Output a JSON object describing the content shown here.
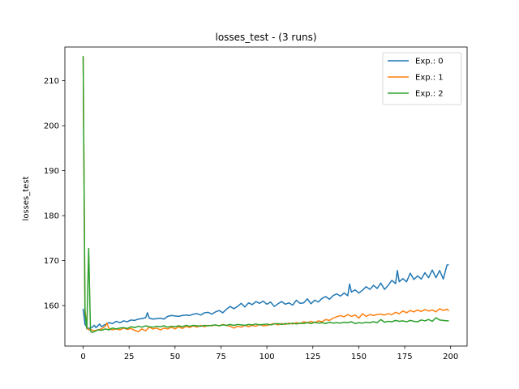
{
  "chart_data": {
    "type": "line",
    "title": "losses_test - (3 runs)",
    "xlabel": "",
    "ylabel": "losses_test",
    "xlim": [
      -9.95,
      208.95
    ],
    "ylim": [
      151.0,
      217.5
    ],
    "xticks": [
      0,
      25,
      50,
      75,
      100,
      125,
      150,
      175,
      200
    ],
    "yticks": [
      160,
      170,
      180,
      190,
      200,
      210
    ],
    "grid": false,
    "legend_position": "top-right",
    "series": [
      {
        "name": "Exp.: 0",
        "color": "#1f77b4",
        "points": [
          [
            0,
            159.3
          ],
          [
            1,
            155.8
          ],
          [
            2,
            155.2
          ],
          [
            3,
            154.9
          ],
          [
            4,
            155.0
          ],
          [
            5,
            155.2
          ],
          [
            6,
            155.6
          ],
          [
            7,
            155.1
          ],
          [
            8,
            155.5
          ],
          [
            9,
            155.9
          ],
          [
            10,
            155.3
          ],
          [
            12,
            155.8
          ],
          [
            14,
            156.2
          ],
          [
            16,
            156.0
          ],
          [
            18,
            156.5
          ],
          [
            20,
            156.2
          ],
          [
            22,
            156.6
          ],
          [
            24,
            156.4
          ],
          [
            26,
            156.8
          ],
          [
            28,
            156.7
          ],
          [
            30,
            157.0
          ],
          [
            32,
            157.1
          ],
          [
            34,
            157.3
          ],
          [
            35,
            158.4
          ],
          [
            36,
            157.2
          ],
          [
            38,
            157.0
          ],
          [
            40,
            157.1
          ],
          [
            42,
            157.2
          ],
          [
            44,
            157.0
          ],
          [
            46,
            157.6
          ],
          [
            48,
            157.8
          ],
          [
            50,
            157.7
          ],
          [
            52,
            157.6
          ],
          [
            54,
            157.8
          ],
          [
            56,
            157.9
          ],
          [
            58,
            157.8
          ],
          [
            60,
            158.1
          ],
          [
            62,
            158.2
          ],
          [
            64,
            157.9
          ],
          [
            66,
            158.4
          ],
          [
            68,
            158.5
          ],
          [
            70,
            158.1
          ],
          [
            72,
            158.6
          ],
          [
            74,
            158.9
          ],
          [
            76,
            158.4
          ],
          [
            78,
            159.2
          ],
          [
            80,
            159.8
          ],
          [
            82,
            159.3
          ],
          [
            84,
            159.8
          ],
          [
            86,
            160.5
          ],
          [
            88,
            159.7
          ],
          [
            90,
            160.6
          ],
          [
            92,
            160.2
          ],
          [
            94,
            160.9
          ],
          [
            96,
            160.5
          ],
          [
            98,
            161.0
          ],
          [
            100,
            160.3
          ],
          [
            102,
            160.8
          ],
          [
            104,
            159.8
          ],
          [
            106,
            160.4
          ],
          [
            108,
            160.9
          ],
          [
            110,
            160.3
          ],
          [
            112,
            160.6
          ],
          [
            114,
            160.1
          ],
          [
            116,
            161.2
          ],
          [
            118,
            160.5
          ],
          [
            120,
            160.6
          ],
          [
            122,
            161.5
          ],
          [
            124,
            160.4
          ],
          [
            126,
            161.2
          ],
          [
            128,
            160.8
          ],
          [
            130,
            161.6
          ],
          [
            132,
            162.0
          ],
          [
            134,
            161.4
          ],
          [
            136,
            162.2
          ],
          [
            138,
            162.6
          ],
          [
            140,
            162.1
          ],
          [
            142,
            162.8
          ],
          [
            144,
            162.2
          ],
          [
            145,
            164.8
          ],
          [
            146,
            163.0
          ],
          [
            148,
            163.5
          ],
          [
            150,
            162.8
          ],
          [
            152,
            163.4
          ],
          [
            154,
            164.2
          ],
          [
            156,
            163.6
          ],
          [
            158,
            164.5
          ],
          [
            160,
            163.8
          ],
          [
            162,
            165.0
          ],
          [
            164,
            163.6
          ],
          [
            166,
            164.5
          ],
          [
            168,
            165.6
          ],
          [
            170,
            164.9
          ],
          [
            171,
            167.8
          ],
          [
            172,
            165.3
          ],
          [
            174,
            166.0
          ],
          [
            176,
            165.3
          ],
          [
            178,
            167.2
          ],
          [
            180,
            165.8
          ],
          [
            182,
            166.6
          ],
          [
            184,
            165.9
          ],
          [
            186,
            167.3
          ],
          [
            188,
            166.2
          ],
          [
            190,
            167.9
          ],
          [
            192,
            166.2
          ],
          [
            194,
            167.8
          ],
          [
            196,
            165.9
          ],
          [
            198,
            169.0
          ],
          [
            199,
            169.1
          ]
        ]
      },
      {
        "name": "Exp.: 1",
        "color": "#ff7f0e",
        "points": [
          [
            0,
            215.4
          ],
          [
            1,
            159.0
          ],
          [
            2,
            155.3
          ],
          [
            3,
            154.6
          ],
          [
            4,
            154.7
          ],
          [
            5,
            154.5
          ],
          [
            6,
            154.4
          ],
          [
            8,
            154.6
          ],
          [
            10,
            154.8
          ],
          [
            12,
            155.4
          ],
          [
            13,
            156.1
          ],
          [
            14,
            154.9
          ],
          [
            16,
            154.6
          ],
          [
            18,
            154.8
          ],
          [
            20,
            154.6
          ],
          [
            22,
            155.0
          ],
          [
            24,
            154.7
          ],
          [
            26,
            154.9
          ],
          [
            28,
            154.5
          ],
          [
            30,
            154.2
          ],
          [
            32,
            154.8
          ],
          [
            34,
            154.4
          ],
          [
            36,
            155.2
          ],
          [
            38,
            154.8
          ],
          [
            40,
            155.0
          ],
          [
            42,
            154.6
          ],
          [
            44,
            155.0
          ],
          [
            46,
            154.8
          ],
          [
            48,
            155.2
          ],
          [
            50,
            154.8
          ],
          [
            52,
            155.3
          ],
          [
            54,
            154.9
          ],
          [
            56,
            155.4
          ],
          [
            58,
            155.1
          ],
          [
            60,
            155.5
          ],
          [
            62,
            155.2
          ],
          [
            64,
            155.6
          ],
          [
            66,
            155.3
          ],
          [
            68,
            155.6
          ],
          [
            70,
            155.5
          ],
          [
            72,
            155.7
          ],
          [
            74,
            155.5
          ],
          [
            76,
            155.8
          ],
          [
            78,
            155.6
          ],
          [
            80,
            155.4
          ],
          [
            82,
            155.0
          ],
          [
            84,
            155.4
          ],
          [
            86,
            155.2
          ],
          [
            88,
            155.6
          ],
          [
            90,
            155.3
          ],
          [
            92,
            155.6
          ],
          [
            94,
            155.4
          ],
          [
            96,
            155.8
          ],
          [
            98,
            155.5
          ],
          [
            100,
            155.6
          ],
          [
            102,
            155.8
          ],
          [
            104,
            156.0
          ],
          [
            106,
            155.7
          ],
          [
            108,
            156.0
          ],
          [
            110,
            155.8
          ],
          [
            112,
            156.1
          ],
          [
            114,
            155.9
          ],
          [
            116,
            156.2
          ],
          [
            118,
            156.0
          ],
          [
            120,
            156.4
          ],
          [
            122,
            156.2
          ],
          [
            124,
            156.5
          ],
          [
            126,
            156.2
          ],
          [
            128,
            156.6
          ],
          [
            130,
            156.4
          ],
          [
            132,
            156.9
          ],
          [
            134,
            156.7
          ],
          [
            136,
            157.2
          ],
          [
            138,
            157.5
          ],
          [
            140,
            157.8
          ],
          [
            142,
            157.5
          ],
          [
            144,
            158.0
          ],
          [
            146,
            157.6
          ],
          [
            148,
            157.9
          ],
          [
            150,
            157.2
          ],
          [
            152,
            158.2
          ],
          [
            154,
            157.6
          ],
          [
            156,
            158.0
          ],
          [
            158,
            157.8
          ],
          [
            160,
            158.0
          ],
          [
            162,
            158.1
          ],
          [
            164,
            157.9
          ],
          [
            166,
            158.2
          ],
          [
            168,
            158.0
          ],
          [
            170,
            158.5
          ],
          [
            172,
            158.2
          ],
          [
            174,
            158.8
          ],
          [
            176,
            158.4
          ],
          [
            178,
            158.9
          ],
          [
            180,
            158.6
          ],
          [
            182,
            159.0
          ],
          [
            184,
            158.7
          ],
          [
            186,
            159.1
          ],
          [
            188,
            158.8
          ],
          [
            190,
            159.0
          ],
          [
            192,
            158.6
          ],
          [
            194,
            159.3
          ],
          [
            196,
            158.9
          ],
          [
            198,
            159.2
          ],
          [
            199,
            158.8
          ]
        ]
      },
      {
        "name": "Exp.: 2",
        "color": "#2ca02c",
        "points": [
          [
            0,
            215.5
          ],
          [
            1,
            158.2
          ],
          [
            2,
            154.8
          ],
          [
            3,
            172.7
          ],
          [
            4,
            154.3
          ],
          [
            5,
            154.0
          ],
          [
            6,
            154.2
          ],
          [
            8,
            154.6
          ],
          [
            10,
            154.5
          ],
          [
            12,
            154.8
          ],
          [
            14,
            154.6
          ],
          [
            16,
            155.0
          ],
          [
            18,
            154.8
          ],
          [
            20,
            155.0
          ],
          [
            22,
            155.1
          ],
          [
            24,
            154.9
          ],
          [
            26,
            155.3
          ],
          [
            28,
            155.1
          ],
          [
            30,
            155.4
          ],
          [
            32,
            155.2
          ],
          [
            34,
            155.5
          ],
          [
            36,
            155.3
          ],
          [
            38,
            155.2
          ],
          [
            40,
            155.4
          ],
          [
            42,
            155.3
          ],
          [
            44,
            155.5
          ],
          [
            46,
            155.2
          ],
          [
            48,
            155.4
          ],
          [
            50,
            155.3
          ],
          [
            52,
            155.5
          ],
          [
            54,
            155.3
          ],
          [
            56,
            155.6
          ],
          [
            58,
            155.4
          ],
          [
            60,
            155.6
          ],
          [
            62,
            155.5
          ],
          [
            64,
            155.4
          ],
          [
            66,
            155.6
          ],
          [
            68,
            155.5
          ],
          [
            70,
            155.6
          ],
          [
            72,
            155.7
          ],
          [
            74,
            155.5
          ],
          [
            76,
            155.7
          ],
          [
            78,
            155.6
          ],
          [
            80,
            155.8
          ],
          [
            82,
            155.6
          ],
          [
            84,
            155.8
          ],
          [
            86,
            155.7
          ],
          [
            88,
            155.6
          ],
          [
            90,
            155.8
          ],
          [
            92,
            155.7
          ],
          [
            94,
            155.9
          ],
          [
            96,
            155.7
          ],
          [
            98,
            155.8
          ],
          [
            100,
            155.9
          ],
          [
            102,
            155.7
          ],
          [
            104,
            155.9
          ],
          [
            106,
            156.0
          ],
          [
            108,
            155.8
          ],
          [
            110,
            156.0
          ],
          [
            112,
            155.9
          ],
          [
            114,
            156.1
          ],
          [
            116,
            155.9
          ],
          [
            118,
            156.1
          ],
          [
            120,
            156.0
          ],
          [
            122,
            156.2
          ],
          [
            124,
            156.0
          ],
          [
            126,
            156.3
          ],
          [
            128,
            156.1
          ],
          [
            130,
            156.2
          ],
          [
            132,
            156.0
          ],
          [
            134,
            156.3
          ],
          [
            136,
            156.1
          ],
          [
            138,
            156.2
          ],
          [
            140,
            156.1
          ],
          [
            142,
            156.3
          ],
          [
            144,
            156.2
          ],
          [
            146,
            156.4
          ],
          [
            148,
            156.0
          ],
          [
            150,
            156.2
          ],
          [
            152,
            156.1
          ],
          [
            154,
            156.3
          ],
          [
            156,
            156.2
          ],
          [
            158,
            156.4
          ],
          [
            160,
            156.2
          ],
          [
            162,
            156.9
          ],
          [
            164,
            156.3
          ],
          [
            166,
            156.5
          ],
          [
            168,
            156.4
          ],
          [
            170,
            156.7
          ],
          [
            172,
            156.5
          ],
          [
            174,
            156.6
          ],
          [
            176,
            156.4
          ],
          [
            178,
            156.7
          ],
          [
            180,
            156.5
          ],
          [
            182,
            156.4
          ],
          [
            184,
            156.8
          ],
          [
            186,
            156.6
          ],
          [
            188,
            156.9
          ],
          [
            190,
            156.5
          ],
          [
            192,
            157.3
          ],
          [
            194,
            156.8
          ],
          [
            196,
            156.7
          ],
          [
            198,
            156.6
          ],
          [
            199,
            156.6
          ]
        ]
      }
    ]
  }
}
